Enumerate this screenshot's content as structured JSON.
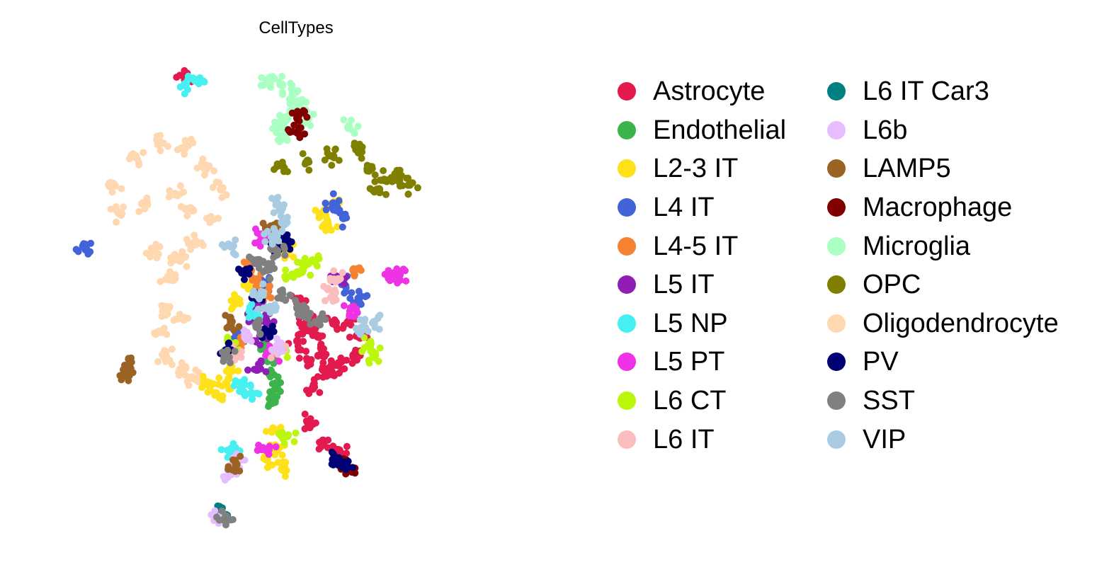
{
  "chart_data": {
    "type": "scatter",
    "title": "CellTypes",
    "xlabel": "",
    "ylabel": "",
    "grid": false,
    "axes_visible": false,
    "legend_placement": "right",
    "legend_columns": 2,
    "categories": [
      {
        "name": "Astrocyte",
        "color": "#e31a4e"
      },
      {
        "name": "Endothelial",
        "color": "#3cb44b"
      },
      {
        "name": "L2-3 IT",
        "color": "#ffe119"
      },
      {
        "name": "L4 IT",
        "color": "#4363d8"
      },
      {
        "name": "L4-5 IT",
        "color": "#f58231"
      },
      {
        "name": "L5 IT",
        "color": "#911eb4"
      },
      {
        "name": "L5 NP",
        "color": "#46f0f0"
      },
      {
        "name": "L5 PT",
        "color": "#f032e6"
      },
      {
        "name": "L6 CT",
        "color": "#bcf60c"
      },
      {
        "name": "L6 IT",
        "color": "#fabebe"
      },
      {
        "name": "L6 IT Car3",
        "color": "#008080"
      },
      {
        "name": "L6b",
        "color": "#e6beff"
      },
      {
        "name": "LAMP5",
        "color": "#9a6324"
      },
      {
        "name": "Macrophage",
        "color": "#800000"
      },
      {
        "name": "Microglia",
        "color": "#aaffc3"
      },
      {
        "name": "OPC",
        "color": "#808000"
      },
      {
        "name": "Oligodendrocyte",
        "color": "#ffd8b1"
      },
      {
        "name": "PV",
        "color": "#000075"
      },
      {
        "name": "SST",
        "color": "#808080"
      },
      {
        "name": "VIP",
        "color": "#a9cce3"
      }
    ],
    "xlim": [
      0,
      100
    ],
    "ylim": [
      0,
      100
    ],
    "clusters": [
      {
        "category": "Oligodendrocyte",
        "points": [
          [
            14,
            76
          ],
          [
            18,
            82
          ],
          [
            23,
            85
          ],
          [
            28,
            84
          ],
          [
            32,
            80
          ],
          [
            35,
            75
          ],
          [
            33,
            69
          ],
          [
            30,
            64
          ],
          [
            27,
            60
          ],
          [
            25,
            56
          ],
          [
            24,
            50
          ],
          [
            23,
            45
          ],
          [
            24,
            40
          ],
          [
            27,
            37
          ],
          [
            30,
            35
          ],
          [
            20,
            72
          ],
          [
            26,
            74
          ],
          [
            15,
            70
          ],
          [
            29,
            71
          ],
          [
            22,
            62
          ],
          [
            27,
            48
          ]
        ]
      },
      {
        "category": "Microglia",
        "points": [
          [
            44,
            98
          ],
          [
            47,
            97
          ],
          [
            49,
            96
          ],
          [
            50,
            93
          ],
          [
            48,
            90
          ],
          [
            46,
            88
          ],
          [
            47,
            86
          ],
          [
            52,
            90
          ],
          [
            60,
            88
          ]
        ]
      },
      {
        "category": "OPC",
        "points": [
          [
            47,
            80
          ],
          [
            52,
            81
          ],
          [
            57,
            82
          ],
          [
            62,
            83
          ],
          [
            64,
            79
          ],
          [
            67,
            77
          ],
          [
            70,
            78
          ],
          [
            72,
            76
          ],
          [
            66,
            75
          ]
        ]
      },
      {
        "category": "Astrocyte",
        "points": [
          [
            50,
            51
          ],
          [
            52,
            47
          ],
          [
            50,
            43
          ],
          [
            52,
            39
          ],
          [
            55,
            37
          ],
          [
            58,
            38
          ],
          [
            61,
            40
          ],
          [
            62,
            44
          ],
          [
            60,
            47
          ],
          [
            57,
            47
          ],
          [
            54,
            44
          ],
          [
            55,
            40
          ],
          [
            57,
            36
          ],
          [
            53,
            33
          ],
          [
            28,
            98
          ],
          [
            52,
            26
          ],
          [
            55,
            22
          ],
          [
            58,
            20
          ]
        ]
      },
      {
        "category": "Endothelial",
        "points": [
          [
            44,
            39
          ],
          [
            45,
            36
          ],
          [
            46,
            33
          ],
          [
            45,
            30
          ],
          [
            44,
            42
          ]
        ]
      },
      {
        "category": "L2-3 IT",
        "points": [
          [
            55,
            70
          ],
          [
            57,
            72
          ],
          [
            56,
            67
          ],
          [
            32,
            34
          ],
          [
            34,
            32
          ],
          [
            36,
            34
          ],
          [
            37,
            37
          ],
          [
            45,
            24
          ],
          [
            46,
            20
          ],
          [
            47,
            16
          ],
          [
            44,
            18
          ],
          [
            41,
            55
          ],
          [
            38,
            51
          ],
          [
            48,
            62
          ]
        ]
      },
      {
        "category": "L4 IT",
        "points": [
          [
            8,
            63
          ],
          [
            57,
            72
          ],
          [
            59,
            69
          ],
          [
            59,
            55
          ],
          [
            62,
            52
          ],
          [
            44,
            55
          ],
          [
            38,
            44
          ]
        ]
      },
      {
        "category": "L4-5 IT",
        "points": [
          [
            42,
            56
          ],
          [
            44,
            53
          ],
          [
            40,
            58
          ],
          [
            61,
            58
          ],
          [
            37,
            41
          ],
          [
            39,
            43
          ]
        ]
      },
      {
        "category": "L5 IT",
        "points": [
          [
            42,
            50
          ],
          [
            44,
            47
          ],
          [
            43,
            44
          ],
          [
            41,
            48
          ],
          [
            58,
            56
          ],
          [
            42,
            37
          ]
        ]
      },
      {
        "category": "L5 NP",
        "points": [
          [
            28,
            97
          ],
          [
            30,
            98
          ],
          [
            39,
            33
          ],
          [
            41,
            32
          ],
          [
            42,
            49
          ],
          [
            37,
            20
          ]
        ]
      },
      {
        "category": "L5 PT",
        "points": [
          [
            43,
            65
          ],
          [
            68,
            57
          ],
          [
            70,
            57
          ],
          [
            61,
            50
          ],
          [
            44,
            20
          ],
          [
            45,
            40
          ]
        ]
      },
      {
        "category": "L6 CT",
        "points": [
          [
            51,
            58
          ],
          [
            53,
            60
          ],
          [
            49,
            57
          ],
          [
            65,
            40
          ],
          [
            64,
            42
          ],
          [
            48,
            23
          ],
          [
            47,
            41
          ],
          [
            37,
            42
          ]
        ]
      },
      {
        "category": "L6 IT",
        "points": [
          [
            56,
            54
          ],
          [
            58,
            56
          ],
          [
            57,
            52
          ],
          [
            46,
            41
          ],
          [
            38,
            40
          ]
        ]
      },
      {
        "category": "L6 IT Car3",
        "points": [
          [
            35,
            7
          ]
        ]
      },
      {
        "category": "L6b",
        "points": [
          [
            38,
            18
          ],
          [
            37,
            15
          ],
          [
            35,
            6
          ],
          [
            46,
            42
          ],
          [
            40,
            44
          ]
        ]
      },
      {
        "category": "LAMP5",
        "points": [
          [
            16,
            36
          ],
          [
            17,
            38
          ],
          [
            38,
            17
          ],
          [
            45,
            67
          ],
          [
            37,
            47
          ]
        ]
      },
      {
        "category": "Macrophage",
        "points": [
          [
            50,
            90
          ],
          [
            50,
            87
          ],
          [
            59,
            18
          ],
          [
            60,
            16
          ]
        ]
      },
      {
        "category": "PV",
        "points": [
          [
            46,
            63
          ],
          [
            48,
            64
          ],
          [
            40,
            58
          ],
          [
            42,
            52
          ],
          [
            57,
            18
          ],
          [
            59,
            17
          ],
          [
            36,
            41
          ],
          [
            44,
            45
          ]
        ]
      },
      {
        "category": "SST",
        "points": [
          [
            42,
            60
          ],
          [
            44,
            58
          ],
          [
            46,
            62
          ],
          [
            47,
            53
          ],
          [
            50,
            50
          ],
          [
            52,
            48
          ],
          [
            54,
            47
          ],
          [
            42,
            46
          ],
          [
            36,
            40
          ],
          [
            36,
            6
          ]
        ]
      },
      {
        "category": "VIP",
        "points": [
          [
            46,
            72
          ],
          [
            47,
            68
          ],
          [
            45,
            65
          ],
          [
            43,
            53
          ],
          [
            44,
            50
          ],
          [
            63,
            46
          ],
          [
            65,
            47
          ],
          [
            37,
            63
          ]
        ]
      }
    ]
  }
}
